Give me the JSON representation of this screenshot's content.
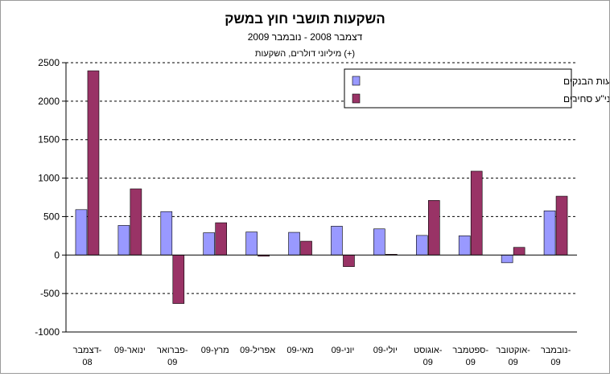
{
  "chart_data": {
    "type": "bar",
    "title": "השקעות תושבי חוץ במשק",
    "subtitle": "דצמבר 2008 - נובמבר 2009",
    "units_label": "מיליוני דולרים, השקעות (+)",
    "categories": [
      [
        "דצמבר-",
        "08"
      ],
      [
        "ינואר-09"
      ],
      [
        "פברואר-",
        "09"
      ],
      [
        "מרץ-09"
      ],
      [
        "אפריל-09"
      ],
      [
        "מאי-09"
      ],
      [
        "יוני-09"
      ],
      [
        "יולי-09"
      ],
      [
        "אוגוסט-",
        "09"
      ],
      [
        "ספטמבר-",
        "09"
      ],
      [
        "אוקטובר-",
        "09"
      ],
      [
        "נובמבר-",
        "09"
      ]
    ],
    "series": [
      {
        "name": "השקעות ישירות בישראל באמצעות הבנקים",
        "color": "#9999ff",
        "values": [
          590,
          385,
          565,
          290,
          300,
          295,
          375,
          340,
          255,
          250,
          -100,
          575
        ]
      },
      {
        "name": "השקעות פיננסיות בני\"ע סחירים",
        "color": "#993366",
        "values": [
          2395,
          860,
          -630,
          420,
          -15,
          180,
          -150,
          10,
          710,
          1090,
          100,
          765
        ]
      }
    ],
    "ylim": [
      -1000,
      2500
    ],
    "yticks": [
      -1000,
      -500,
      0,
      500,
      1000,
      1500,
      2000,
      2500
    ],
    "grid": true,
    "legend_position": "top-right"
  }
}
